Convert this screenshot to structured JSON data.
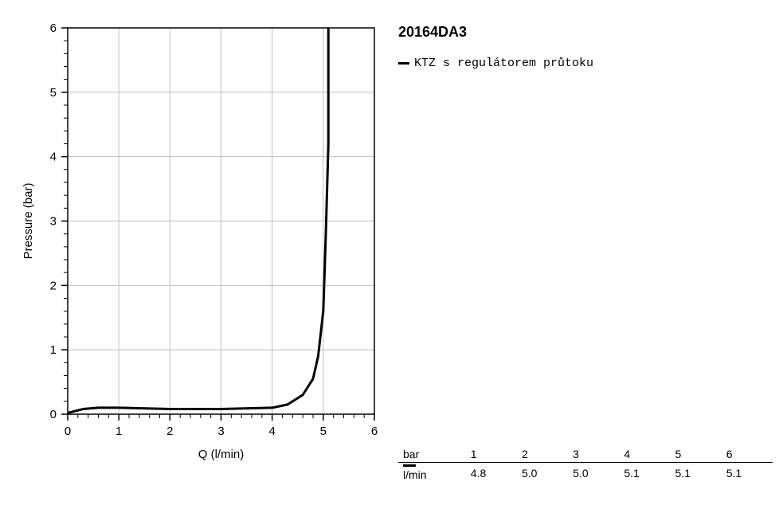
{
  "chart": {
    "type": "line",
    "title_code": "20164DA3",
    "legend_label": "KTZ s regulátorem průtoku",
    "xlabel": "Q (l/min)",
    "ylabel": "Pressure (bar)",
    "xlim": [
      0,
      6
    ],
    "ylim": [
      0,
      6
    ],
    "xtick_step": 1,
    "ytick_step": 1,
    "xticks": [
      0,
      1,
      2,
      3,
      4,
      5,
      6
    ],
    "yticks": [
      0,
      1,
      2,
      3,
      4,
      5,
      6
    ],
    "minor_tick_count": 5,
    "background_color": "#ffffff",
    "grid_color": "#bfbfbf",
    "axis_color": "#000000",
    "line_color": "#000000",
    "line_width": 3,
    "label_fontsize": 15,
    "tick_fontsize": 15,
    "series": {
      "x": [
        0,
        0.3,
        0.6,
        1.0,
        2.0,
        3.0,
        4.0,
        4.3,
        4.6,
        4.8,
        4.9,
        5.0,
        5.05,
        5.1,
        5.1,
        5.1
      ],
      "y": [
        0.02,
        0.08,
        0.1,
        0.1,
        0.08,
        0.08,
        0.1,
        0.15,
        0.3,
        0.55,
        0.9,
        1.6,
        2.8,
        4.2,
        5.5,
        6.0
      ]
    }
  },
  "table": {
    "header_label": "bar",
    "unit_label": "l/min",
    "columns": [
      "1",
      "2",
      "3",
      "4",
      "5",
      "6"
    ],
    "row": [
      "4.8",
      "5.0",
      "5.0",
      "5.1",
      "5.1",
      "5.1"
    ]
  }
}
